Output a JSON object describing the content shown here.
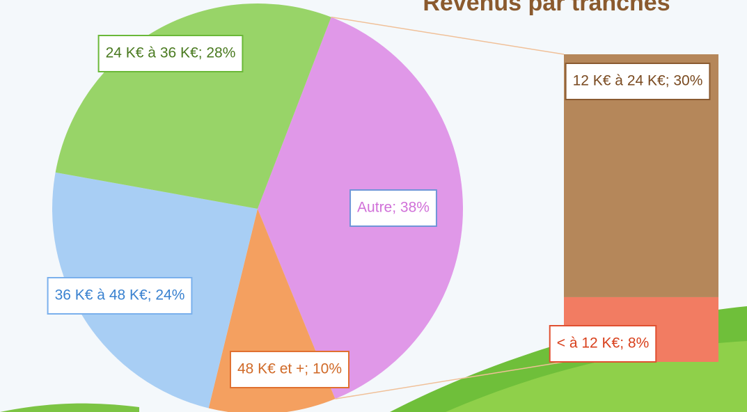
{
  "chart_data": [
    {
      "type": "pie",
      "title": "Revenus par tranches",
      "values": [
        38,
        10,
        24,
        28
      ],
      "value_labels": [
        "Autre; 38%",
        "48 K€ et +; 10%",
        "36 K€ à 48 K€; 24%",
        "24 K€ à 36 K€; 28%"
      ],
      "colors": [
        "#e098e8",
        "#f4a060",
        "#a8cef4",
        "#98d468"
      ],
      "label_colors": [
        "#d070d8",
        "#d06a28",
        "#3a82d0",
        "#4a7a20"
      ],
      "border_colors": [
        "#6f95d8",
        "#e07030",
        "#7ab0ec",
        "#6ab838"
      ]
    },
    {
      "type": "bar",
      "values": [
        8,
        30
      ],
      "value_labels": [
        "< à 12 K€; 8%",
        "12 K€ à 24 K€; 30%"
      ],
      "colors": [
        "#f27c62",
        "#b5875a"
      ],
      "label_colors": [
        "#d8401c",
        "#7a4a20"
      ],
      "border_colors": [
        "#e05030",
        "#8a5a30"
      ]
    }
  ]
}
